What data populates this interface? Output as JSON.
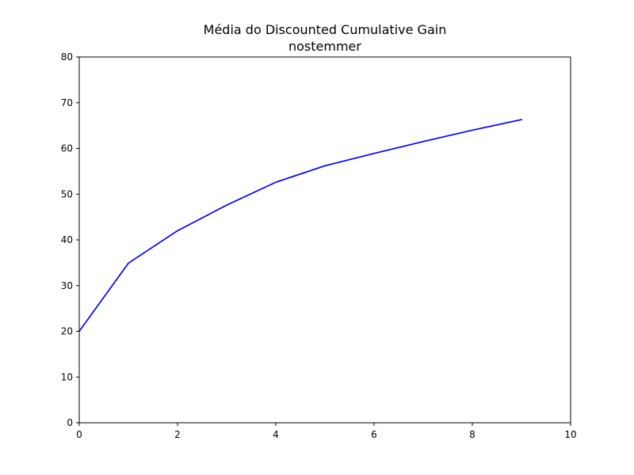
{
  "chart_data": {
    "type": "line",
    "title": "Média do Discounted Cumulative Gain",
    "subtitle": "nostemmer",
    "xlabel": "",
    "ylabel": "",
    "xlim": [
      0,
      10
    ],
    "ylim": [
      0,
      80
    ],
    "x_ticks": [
      "0",
      "2",
      "4",
      "6",
      "8",
      "10"
    ],
    "y_ticks": [
      "0",
      "10",
      "20",
      "30",
      "40",
      "50",
      "60",
      "70",
      "80"
    ],
    "grid": false,
    "series": [
      {
        "color": "#0000ff",
        "x": [
          0,
          1,
          2,
          3,
          4,
          5,
          6,
          7,
          8,
          9
        ],
        "y": [
          20.0,
          34.9,
          42.0,
          47.6,
          52.6,
          56.2,
          58.9,
          61.5,
          64.0,
          66.3
        ]
      }
    ]
  }
}
